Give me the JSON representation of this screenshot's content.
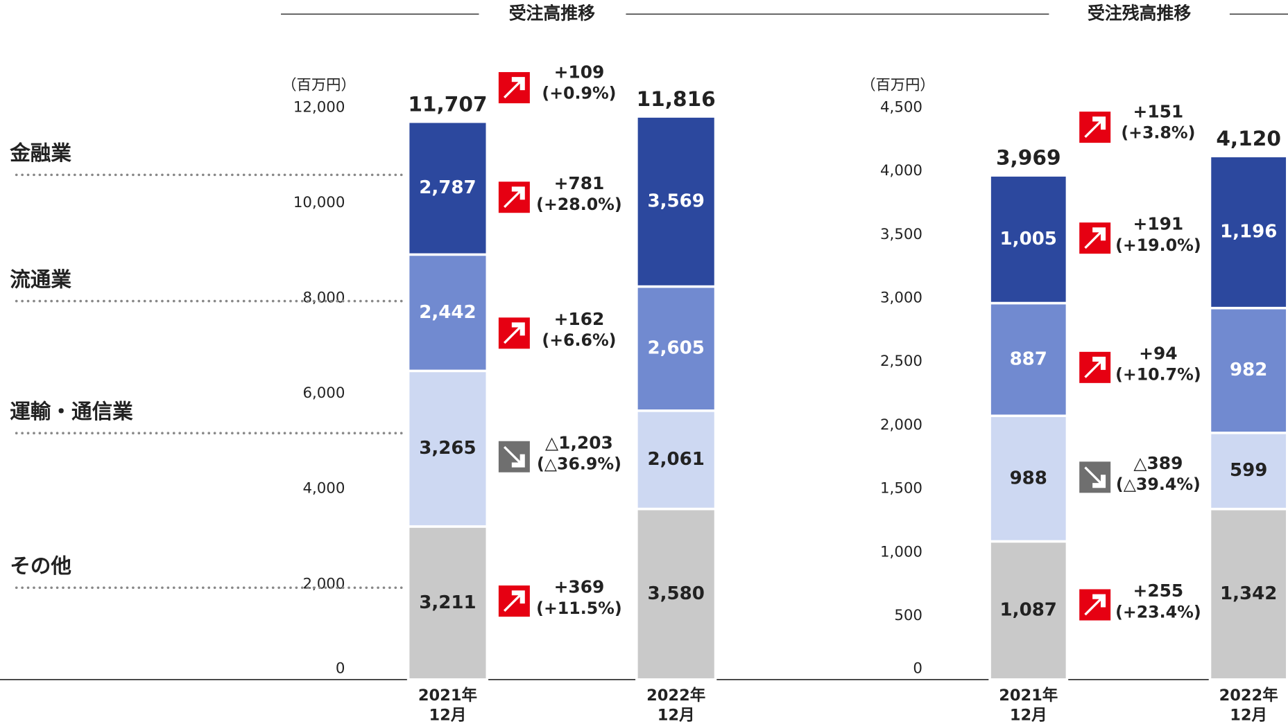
{
  "chart_data": [
    {
      "type": "stacked_bar",
      "title": "受注高推移",
      "unit": "（百万円）",
      "categories": [
        [
          "2021年",
          "12月"
        ],
        [
          "2022年",
          "12月"
        ]
      ],
      "ylim": [
        0,
        12000
      ],
      "yticks": [
        0,
        {
          "value": 2000,
          "label": "2,000"
        },
        {
          "value": 4000,
          "label": "4,000"
        },
        {
          "value": 6000,
          "label": "6,000"
        },
        {
          "value": 8000,
          "label": "8,000"
        },
        {
          "value": 10000,
          "label": "10,000"
        },
        {
          "value": 12000,
          "label": "12,000"
        }
      ],
      "series": [
        {
          "name": "その他",
          "color": "#c9c9c9",
          "label_color": "#222222",
          "values": [
            3211,
            3580
          ],
          "value_labels": [
            "3,211",
            "3,580"
          ],
          "change": "+369",
          "change_pct": "(+11.5%)",
          "trend": "up"
        },
        {
          "name": "運輸・通信業",
          "color": "#cdd8f2",
          "label_color": "#222222",
          "values": [
            3265,
            2061
          ],
          "value_labels": [
            "3,265",
            "2,061"
          ],
          "change": "△1,203",
          "change_pct": "(△36.9%)",
          "trend": "down"
        },
        {
          "name": "流通業",
          "color": "#718ad0",
          "label_color": "#ffffff",
          "values": [
            2442,
            2605
          ],
          "value_labels": [
            "2,442",
            "2,605"
          ],
          "change": "+162",
          "change_pct": "(+6.6%)",
          "trend": "up"
        },
        {
          "name": "金融業",
          "color": "#2c489e",
          "label_color": "#ffffff",
          "values": [
            2787,
            3569
          ],
          "value_labels": [
            "2,787",
            "3,569"
          ],
          "change": "+781",
          "change_pct": "(+28.0%)",
          "trend": "up"
        }
      ],
      "totals": [
        11707,
        11816
      ],
      "total_labels": [
        "11,707",
        "11,816"
      ],
      "total_change": "+109",
      "total_change_pct": "(+0.9%)",
      "total_trend": "up"
    },
    {
      "type": "stacked_bar",
      "title": "受注残高推移",
      "unit": "（百万円）",
      "categories": [
        [
          "2021年",
          "12月"
        ],
        [
          "2022年",
          "12月"
        ]
      ],
      "ylim": [
        0,
        4500
      ],
      "yticks": [
        0,
        500,
        {
          "value": 1000,
          "label": "1,000"
        },
        {
          "value": 1500,
          "label": "1,500"
        },
        {
          "value": 2000,
          "label": "2,000"
        },
        {
          "value": 2500,
          "label": "2,500"
        },
        {
          "value": 3000,
          "label": "3,000"
        },
        {
          "value": 3500,
          "label": "3,500"
        },
        {
          "value": 4000,
          "label": "4,000"
        },
        {
          "value": 4500,
          "label": "4,500"
        }
      ],
      "series": [
        {
          "name": "その他",
          "color": "#c9c9c9",
          "label_color": "#222222",
          "values": [
            1087,
            1342
          ],
          "value_labels": [
            "1,087",
            "1,342"
          ],
          "change": "+255",
          "change_pct": "(+23.4%)",
          "trend": "up"
        },
        {
          "name": "運輸・通信業",
          "color": "#cdd8f2",
          "label_color": "#222222",
          "values": [
            988,
            599
          ],
          "change": "△389",
          "change_pct": "(△39.4%)",
          "trend": "down"
        },
        {
          "name": "流通業",
          "color": "#718ad0",
          "label_color": "#ffffff",
          "values": [
            887,
            982
          ],
          "change": "+94",
          "change_pct": "(+10.7%)",
          "trend": "up"
        },
        {
          "name": "金融業",
          "color": "#2c489e",
          "label_color": "#ffffff",
          "values": [
            1005,
            1196
          ],
          "value_labels": [
            "1,005",
            "1,196"
          ],
          "change": "+191",
          "change_pct": "(+19.0%)",
          "trend": "up"
        }
      ],
      "totals": [
        3969,
        4120
      ],
      "total_labels": [
        "3,969",
        "4,120"
      ],
      "total_change": "+151",
      "total_change_pct": "(+3.8%)",
      "total_trend": "up"
    }
  ]
}
